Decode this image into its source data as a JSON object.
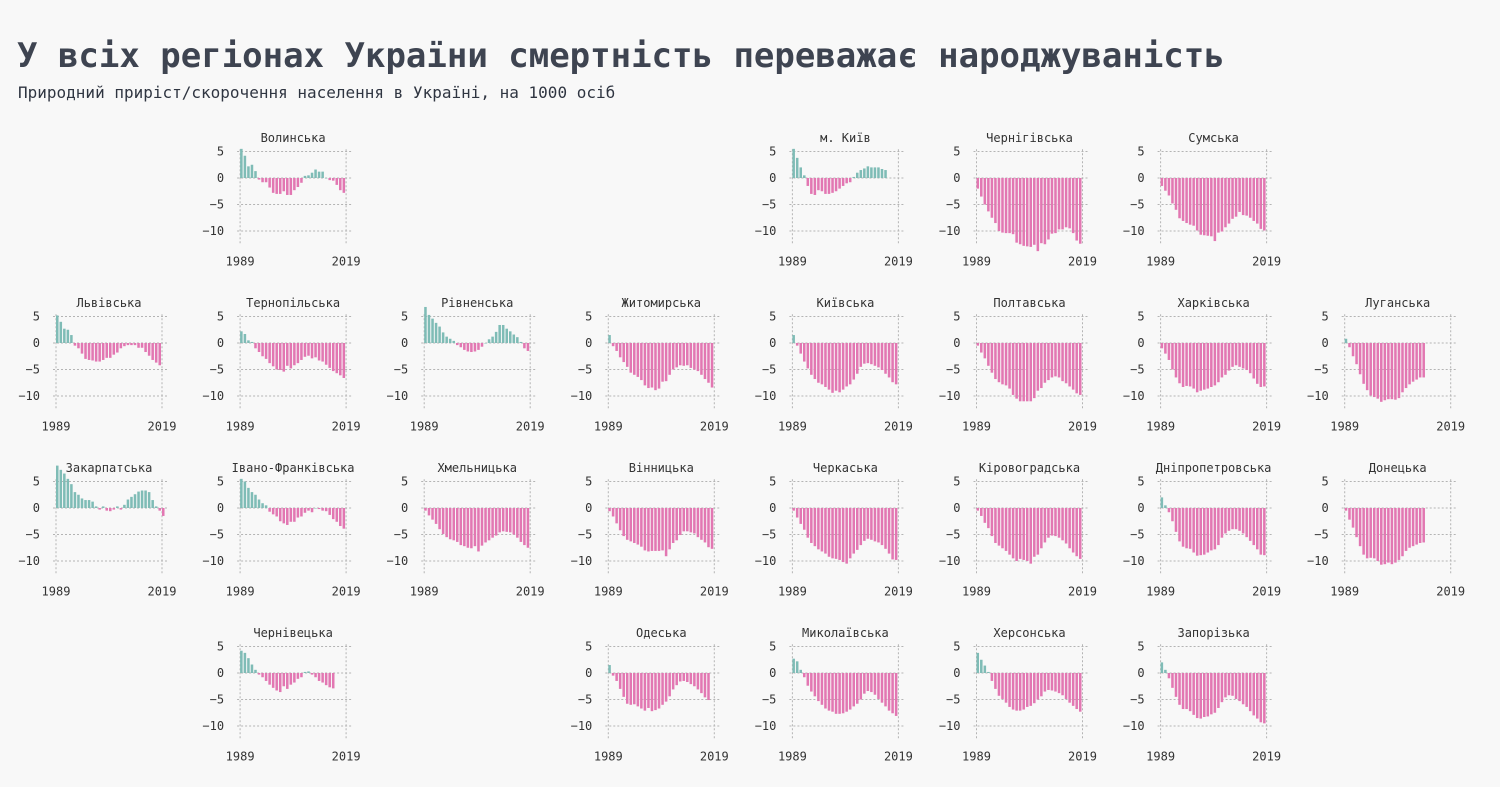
{
  "title": "У всіх регіонах України смертність переважає народжуваність",
  "subtitle": "Природний приріст/скорочення населення в Україні, на 1000 осіб",
  "colors": {
    "positive": "#7fbcb6",
    "negative": "#e277b2",
    "grid": "#b4b4b4",
    "background": "#f8f8f8"
  },
  "chart_data": {
    "type": "bar",
    "layout": "small-multiples",
    "x_start": 1989,
    "x_end": 2019,
    "x_ticks": [
      "1989",
      "2019"
    ],
    "y_ticks": [
      "5",
      "0",
      "−5",
      "−10"
    ],
    "ylim": [
      -12.5,
      6
    ],
    "grid": true,
    "panels": [
      {
        "name": "Волинська",
        "row": 0,
        "col": 1,
        "values": [
          5.5,
          4.2,
          2.2,
          2.5,
          1.3,
          -0.3,
          -0.8,
          -0.8,
          -1.8,
          -2.8,
          -3,
          -3,
          -2.5,
          -3.2,
          -3.2,
          -2.3,
          -1.7,
          -0.9,
          0.4,
          0.5,
          1,
          1.6,
          1.2,
          1.2,
          0,
          -0.4,
          -0.5,
          -1.3,
          -2.3,
          -2.8
        ]
      },
      {
        "name": "м. Київ",
        "row": 0,
        "col": 4,
        "values": [
          5.5,
          3.8,
          2,
          0.5,
          -1.5,
          -3,
          -3.2,
          -2.3,
          -2.5,
          -3,
          -3,
          -2.8,
          -2.5,
          -2,
          -1.5,
          -1,
          -0.8,
          0.2,
          1,
          1.5,
          1.8,
          2.2,
          2,
          2,
          2,
          1.7,
          1.5
        ]
      },
      {
        "name": "Чернігівська",
        "row": 0,
        "col": 5,
        "values": [
          -2,
          -3.5,
          -5,
          -6.3,
          -7.5,
          -8.5,
          -10,
          -10.3,
          -10.4,
          -10.4,
          -10.6,
          -12.2,
          -12.5,
          -12.8,
          -12.9,
          -13,
          -12.6,
          -13.8,
          -12.3,
          -12.5,
          -11.6,
          -10.5,
          -10.4,
          -9.7,
          -9.7,
          -9.3,
          -9.5,
          -10.4,
          -11.8,
          -12.4
        ]
      },
      {
        "name": "Сумська",
        "row": 0,
        "col": 6,
        "values": [
          -1.5,
          -2.4,
          -3.3,
          -4.8,
          -6,
          -7.6,
          -8.1,
          -8.5,
          -8.8,
          -9,
          -9.9,
          -10.7,
          -10.8,
          -10.9,
          -11,
          -11.9,
          -10.3,
          -10.1,
          -9.3,
          -8.6,
          -7.7,
          -7.3,
          -6.4,
          -7,
          -7.1,
          -7.5,
          -8.1,
          -8.6,
          -9.6,
          -9.9
        ]
      },
      {
        "name": "Львівська",
        "row": 1,
        "col": 0,
        "values": [
          5.2,
          4,
          2.7,
          2.5,
          1.5,
          -0.5,
          -1,
          -2,
          -3,
          -3.2,
          -3.3,
          -3.5,
          -3.5,
          -3.2,
          -2.8,
          -2.8,
          -2.2,
          -1.8,
          -1,
          -0.6,
          -0.4,
          -0.4,
          -0.4,
          -0.9,
          -0.9,
          -1.7,
          -2.4,
          -3.2,
          -3.7,
          -4.2
        ]
      },
      {
        "name": "Тернопільська",
        "row": 1,
        "col": 1,
        "values": [
          2.2,
          1.7,
          0.5,
          0.2,
          -1,
          -1.7,
          -2.5,
          -3,
          -3.8,
          -4.4,
          -5,
          -5.1,
          -5.4,
          -4.3,
          -4.8,
          -4.2,
          -3.8,
          -3.2,
          -2.6,
          -2.4,
          -2.9,
          -2.7,
          -3.3,
          -3.5,
          -4.1,
          -4.7,
          -5.3,
          -5.7,
          -6.1,
          -6.6
        ]
      },
      {
        "name": "Рівненська",
        "row": 1,
        "col": 2,
        "values": [
          6.8,
          5.3,
          4.6,
          3.8,
          3.1,
          2,
          1.2,
          0.8,
          0.4,
          -0.4,
          -0.8,
          -1.3,
          -1.6,
          -1.7,
          -1.6,
          -1.3,
          -0.7,
          0,
          0.7,
          1.2,
          2.1,
          3.4,
          3.4,
          2.7,
          2.2,
          1.6,
          1.1,
          0.2,
          -1,
          -1.5
        ]
      },
      {
        "name": "Житомирська",
        "row": 1,
        "col": 3,
        "values": [
          1.5,
          -0.6,
          -1.5,
          -2.7,
          -3.6,
          -4.5,
          -5.6,
          -6,
          -6.4,
          -7,
          -8,
          -8.5,
          -8.4,
          -8.9,
          -8.6,
          -7.3,
          -7.2,
          -6,
          -5,
          -4.6,
          -4.2,
          -4.3,
          -4.2,
          -4.7,
          -5,
          -5.3,
          -6,
          -6.8,
          -7.5,
          -8.4
        ]
      },
      {
        "name": "Київська",
        "row": 1,
        "col": 4,
        "values": [
          1.5,
          -0.5,
          -2,
          -3.5,
          -4.8,
          -6,
          -6.8,
          -7.5,
          -7.8,
          -8.3,
          -8.8,
          -9.4,
          -9,
          -9.3,
          -8.8,
          -8.2,
          -7.8,
          -6.9,
          -5.8,
          -4.5,
          -3.9,
          -3.8,
          -4,
          -4.3,
          -4.6,
          -5.1,
          -5.8,
          -6.5,
          -7.4,
          -7.8
        ]
      },
      {
        "name": "Полтавська",
        "row": 1,
        "col": 5,
        "values": [
          -0.5,
          -1.8,
          -2.9,
          -4.3,
          -5.6,
          -6.8,
          -7.4,
          -7.8,
          -8,
          -8.6,
          -9.8,
          -10.5,
          -11,
          -11,
          -11,
          -11,
          -10.4,
          -9,
          -8.5,
          -7.5,
          -7,
          -6.5,
          -6.3,
          -6.5,
          -7.2,
          -7.6,
          -8.2,
          -8.8,
          -9.5,
          -9.8
        ]
      },
      {
        "name": "Харківська",
        "row": 1,
        "col": 6,
        "values": [
          -1,
          -2,
          -3.2,
          -5,
          -6.5,
          -7.6,
          -8.3,
          -8.1,
          -8.2,
          -8.6,
          -9.3,
          -9,
          -8.8,
          -8.6,
          -8.3,
          -8,
          -7.4,
          -6.5,
          -6,
          -5.2,
          -4.5,
          -4.2,
          -4.5,
          -4.8,
          -5.1,
          -5.7,
          -6.7,
          -7.7,
          -8.3,
          -8.2
        ]
      },
      {
        "name": "Луганська",
        "row": 1,
        "col": 7,
        "values": [
          0.8,
          -0.8,
          -2.5,
          -4,
          -5.9,
          -7.7,
          -8.9,
          -9.9,
          -10.2,
          -10.5,
          -11.1,
          -10.8,
          -10.6,
          -10.6,
          -10.7,
          -10.4,
          -9.3,
          -8.5,
          -7.8,
          -7.3,
          -6.9,
          -6.5,
          -6.5
        ]
      },
      {
        "name": "Закарпатська",
        "row": 2,
        "col": 0,
        "values": [
          8,
          7.2,
          6.5,
          5.5,
          4.5,
          3,
          2.5,
          1.8,
          1.5,
          1.5,
          1.2,
          0.3,
          -0.3,
          0.3,
          -0.5,
          -0.6,
          -0.3,
          0.3,
          -0.3,
          0.6,
          1.6,
          2.1,
          2.6,
          3.1,
          3.3,
          3.3,
          3,
          1.5,
          0.3,
          -0.5,
          -1.5
        ]
      },
      {
        "name": "Івано-Франківська",
        "row": 2,
        "col": 1,
        "values": [
          5.5,
          5,
          3.8,
          3,
          2.5,
          1.6,
          0.9,
          0.5,
          -0.7,
          -1.2,
          -1.6,
          -2.5,
          -2.9,
          -3.2,
          -2.6,
          -2.6,
          -1.8,
          -1.6,
          -0.9,
          -0.5,
          -0.8,
          0,
          -0.2,
          -0.5,
          -0.6,
          -1.3,
          -2.1,
          -2.6,
          -3.4,
          -3.9
        ]
      },
      {
        "name": "Хмельницька",
        "row": 2,
        "col": 2,
        "values": [
          -0.5,
          -1.4,
          -2.2,
          -3,
          -4,
          -4.9,
          -5.5,
          -5.9,
          -6.1,
          -6.4,
          -7,
          -7.2,
          -7.5,
          -7.6,
          -7.2,
          -8.2,
          -7.1,
          -6.5,
          -6.1,
          -5.6,
          -5.2,
          -4.6,
          -4.4,
          -4.5,
          -4.6,
          -5,
          -5.6,
          -6.4,
          -7,
          -7.5
        ]
      },
      {
        "name": "Вінницька",
        "row": 2,
        "col": 3,
        "values": [
          -0.6,
          -1.6,
          -2.9,
          -4.2,
          -5.3,
          -6,
          -6.3,
          -6.6,
          -6.9,
          -7.3,
          -8,
          -8.2,
          -8.1,
          -8.1,
          -8.1,
          -8,
          -9.1,
          -7.8,
          -6.6,
          -6.1,
          -5.1,
          -4.4,
          -4.4,
          -4.6,
          -4.8,
          -5.5,
          -6,
          -6.5,
          -7.4,
          -7.7
        ]
      },
      {
        "name": "Черкаська",
        "row": 2,
        "col": 4,
        "values": [
          -0.5,
          -1.8,
          -3,
          -4.1,
          -5.6,
          -6.6,
          -7.2,
          -7.8,
          -8.2,
          -8.6,
          -9.2,
          -9.5,
          -9.6,
          -9.8,
          -10.2,
          -10.5,
          -9.5,
          -8.6,
          -7.9,
          -7,
          -6.2,
          -5.8,
          -6,
          -6.3,
          -6.5,
          -7,
          -7.7,
          -8.6,
          -9.7,
          -9.8
        ]
      },
      {
        "name": "Кіровоградська",
        "row": 2,
        "col": 5,
        "values": [
          -0.5,
          -1.5,
          -2.8,
          -3.8,
          -5.3,
          -6.6,
          -7.1,
          -7.6,
          -8.1,
          -8.8,
          -9.5,
          -10,
          -9.6,
          -9.8,
          -10,
          -10.5,
          -9.2,
          -8.8,
          -7.6,
          -6.5,
          -5.6,
          -5.2,
          -5.3,
          -5.6,
          -6.1,
          -6.7,
          -7.6,
          -8.4,
          -9.1,
          -9.6
        ]
      },
      {
        "name": "Дніпропетровська",
        "row": 2,
        "col": 6,
        "values": [
          2,
          0.5,
          -0.8,
          -2.5,
          -4.5,
          -6.3,
          -7.3,
          -7.6,
          -7.7,
          -8.4,
          -9,
          -8.9,
          -8.8,
          -8.4,
          -8,
          -7.8,
          -7,
          -5.6,
          -4.8,
          -4.3,
          -4,
          -4,
          -4.3,
          -4.8,
          -5.5,
          -6.2,
          -7,
          -7.8,
          -8.8,
          -8.9
        ]
      },
      {
        "name": "Донецька",
        "row": 2,
        "col": 7,
        "values": [
          -0.5,
          -2.2,
          -3.7,
          -5.5,
          -7.2,
          -8.8,
          -9.5,
          -9.4,
          -9.5,
          -10,
          -10.7,
          -10.6,
          -10.3,
          -10.6,
          -10.3,
          -9.8,
          -9.1,
          -8.1,
          -7.5,
          -7.2,
          -6.9,
          -6.6,
          -6.5
        ]
      },
      {
        "name": "Чернівецька",
        "row": 3,
        "col": 1,
        "values": [
          4.2,
          3.8,
          2.8,
          1.6,
          0.6,
          -0.3,
          -0.8,
          -1.5,
          -2.2,
          -2.8,
          -3.3,
          -3.6,
          -2.5,
          -3,
          -2.2,
          -1.8,
          -1.1,
          -0.8,
          0.2,
          0.3,
          -0.3,
          -0.8,
          -1.5,
          -1.8,
          -2.3,
          -2.7,
          -2.9
        ]
      },
      {
        "name": "Одеська",
        "row": 3,
        "col": 3,
        "values": [
          1.5,
          -0.5,
          -1.5,
          -3,
          -4.5,
          -5.8,
          -6,
          -5.9,
          -6.3,
          -6.7,
          -7.1,
          -6.6,
          -7.2,
          -7,
          -6.7,
          -6,
          -5.4,
          -4.4,
          -3.1,
          -2.3,
          -1.6,
          -1.5,
          -1.7,
          -2.1,
          -2.5,
          -3.1,
          -3.8,
          -4.6,
          -5.1
        ]
      },
      {
        "name": "Миколаївська",
        "row": 3,
        "col": 4,
        "values": [
          2.7,
          2.2,
          0.6,
          -0.8,
          -2.4,
          -3.5,
          -4.4,
          -5.3,
          -6,
          -6.7,
          -7.1,
          -7.3,
          -7.7,
          -7.7,
          -7.6,
          -7.3,
          -6.9,
          -6.3,
          -5.8,
          -5,
          -3.9,
          -3.4,
          -3.6,
          -4.1,
          -4.9,
          -5.6,
          -6.3,
          -7.1,
          -7.6,
          -8.1
        ]
      },
      {
        "name": "Херсонська",
        "row": 3,
        "col": 5,
        "values": [
          3.8,
          2.5,
          1.4,
          0.2,
          -1.5,
          -3,
          -4.3,
          -4.9,
          -5.6,
          -6.4,
          -6.9,
          -7.1,
          -7.1,
          -6.9,
          -6.4,
          -6.2,
          -5.7,
          -5,
          -4.4,
          -3.5,
          -3.2,
          -3.3,
          -3.5,
          -3.8,
          -4.2,
          -4.9,
          -5.6,
          -6.2,
          -6.8,
          -7.3
        ]
      },
      {
        "name": "Запорізька",
        "row": 3,
        "col": 6,
        "values": [
          2,
          0.6,
          -1,
          -2.8,
          -4.5,
          -6,
          -6.8,
          -6.8,
          -7.2,
          -7.9,
          -8.5,
          -8.6,
          -8.3,
          -8.2,
          -7.8,
          -7.5,
          -6.6,
          -5.5,
          -4.6,
          -4.2,
          -4.3,
          -4.9,
          -5.3,
          -5.9,
          -6.4,
          -7.2,
          -8,
          -8.6,
          -9.3,
          -9.5
        ]
      }
    ]
  }
}
